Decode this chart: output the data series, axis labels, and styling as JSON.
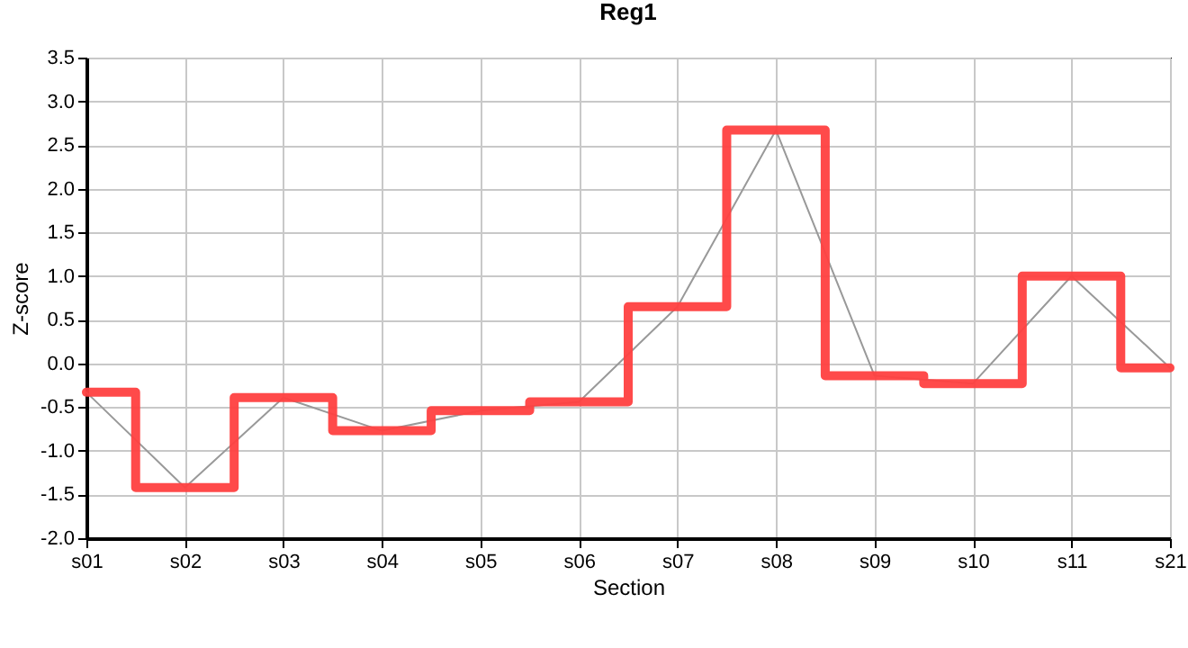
{
  "chart_data": {
    "type": "line",
    "title": "Reg1",
    "xlabel": "Section",
    "ylabel": "Z-score",
    "categories": [
      "s01",
      "s02",
      "s03",
      "s04",
      "s05",
      "s06",
      "s07",
      "s08",
      "s09",
      "s10",
      "s11",
      "s21"
    ],
    "series": [
      {
        "type": "line",
        "color": "#999999",
        "values": [
          -0.33,
          -1.42,
          -0.39,
          -0.77,
          -0.54,
          -0.44,
          0.65,
          2.67,
          -0.14,
          -0.23,
          1.0,
          -0.05
        ]
      },
      {
        "type": "step",
        "color": "#ff4040",
        "values": [
          -0.33,
          -1.42,
          -0.39,
          -0.77,
          -0.54,
          -0.44,
          0.65,
          2.67,
          -0.14,
          -0.23,
          1.0,
          -0.05
        ]
      }
    ],
    "ylim": [
      -2,
      3.5
    ],
    "yticks": [
      {
        "value": -2,
        "label": "-2.0"
      },
      -1.5,
      {
        "value": -1,
        "label": "-1.0"
      },
      -0.5,
      {
        "value": 0,
        "label": "0.0"
      },
      0.5,
      {
        "value": 1,
        "label": "1.0"
      },
      1.5,
      {
        "value": 2,
        "label": "2.0"
      },
      2.5,
      {
        "value": 3,
        "label": "3.0"
      },
      3.5
    ],
    "grid": true
  }
}
